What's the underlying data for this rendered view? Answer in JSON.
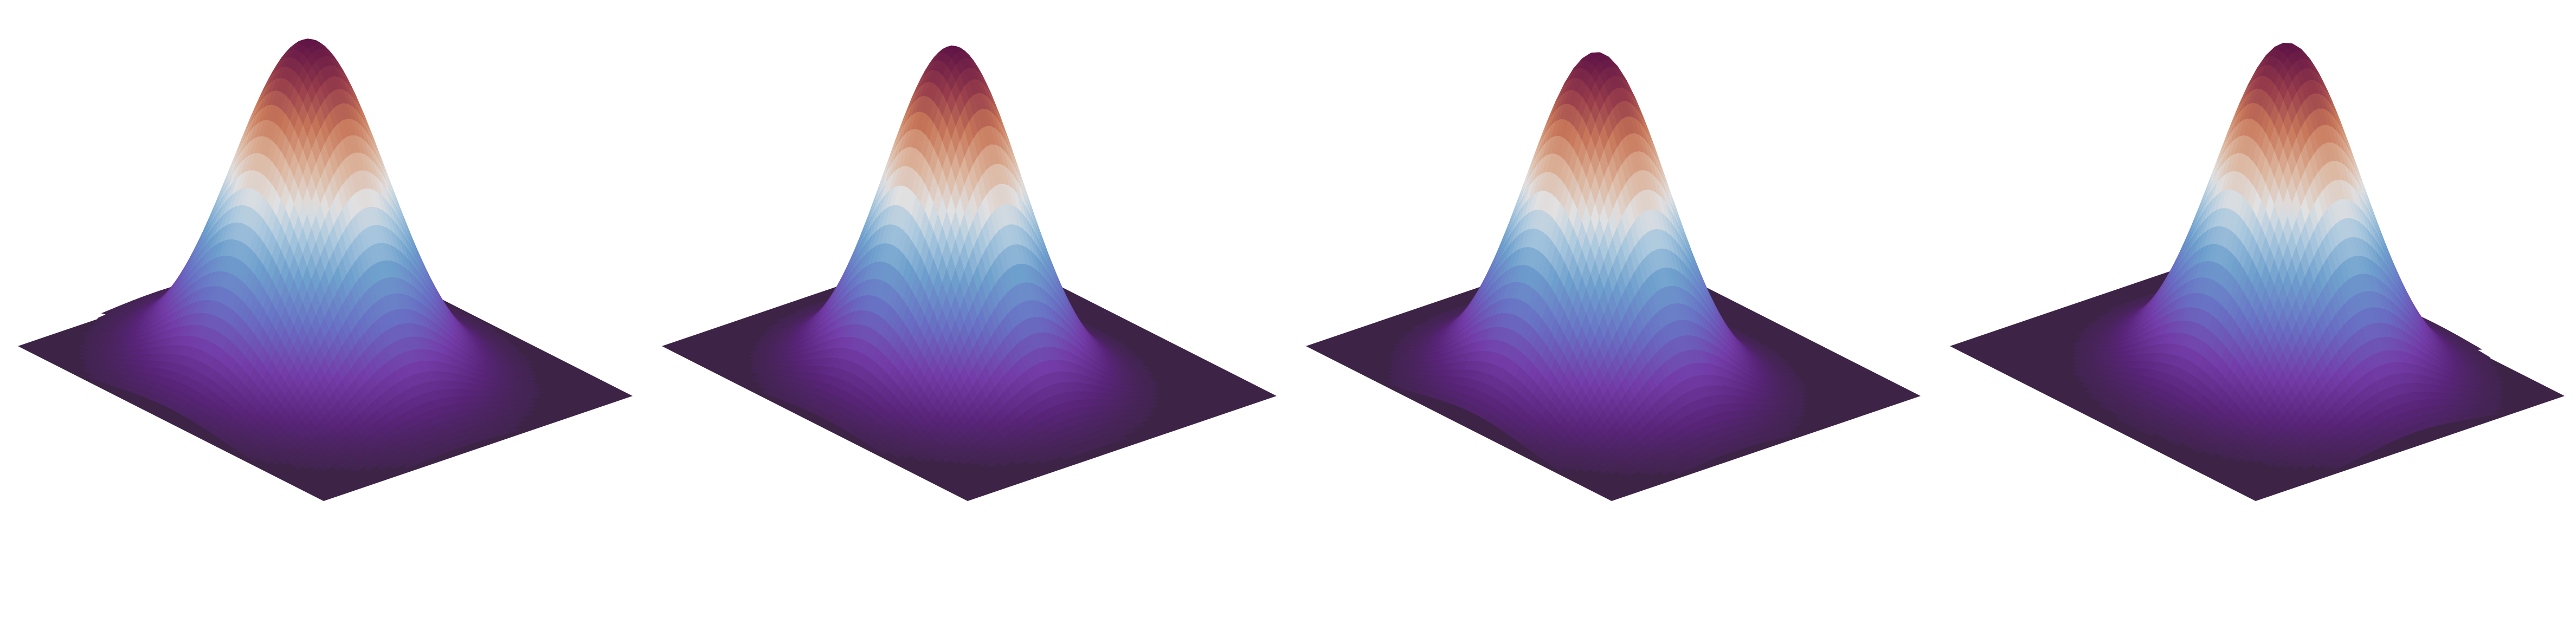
{
  "figure": {
    "background_color": "#ffffff"
  },
  "chart_data": [
    {
      "type": "surface",
      "title": "",
      "xlabel": "",
      "ylabel": "",
      "zlabel": "",
      "axes_visible": false,
      "grid": false,
      "colormap": "twilight_shifted",
      "floor_color": "#3d2447",
      "surface": {
        "function": "gaussian",
        "amplitude": 1.0,
        "center": [
          0.0,
          0.1
        ],
        "sigma": 0.36
      },
      "zlim": [
        0,
        1.0
      ]
    },
    {
      "type": "surface",
      "title": "",
      "xlabel": "",
      "ylabel": "",
      "zlabel": "",
      "axes_visible": false,
      "grid": false,
      "colormap": "twilight_shifted",
      "floor_color": "#3d2447",
      "surface": {
        "function": "gaussian",
        "amplitude": 1.0,
        "center": [
          0.05,
          0.15
        ],
        "sigma": 0.32
      },
      "zlim": [
        0,
        1.0
      ]
    },
    {
      "type": "surface",
      "title": "",
      "xlabel": "",
      "ylabel": "",
      "zlabel": "",
      "axes_visible": false,
      "grid": false,
      "colormap": "twilight_shifted",
      "floor_color": "#3d2447",
      "surface": {
        "function": "gaussian",
        "amplitude": 1.0,
        "center": [
          0.1,
          0.2
        ],
        "sigma": 0.33
      },
      "zlim": [
        0,
        1.0
      ]
    },
    {
      "type": "surface",
      "title": "",
      "xlabel": "",
      "ylabel": "",
      "zlabel": "",
      "axes_visible": false,
      "grid": false,
      "colormap": "twilight_shifted",
      "floor_color": "#3d2447",
      "surface": {
        "function": "gaussian",
        "amplitude": 1.0,
        "center": [
          0.15,
          -0.05
        ],
        "sigma": 0.34
      },
      "zlim": [
        0,
        1.0
      ]
    }
  ]
}
